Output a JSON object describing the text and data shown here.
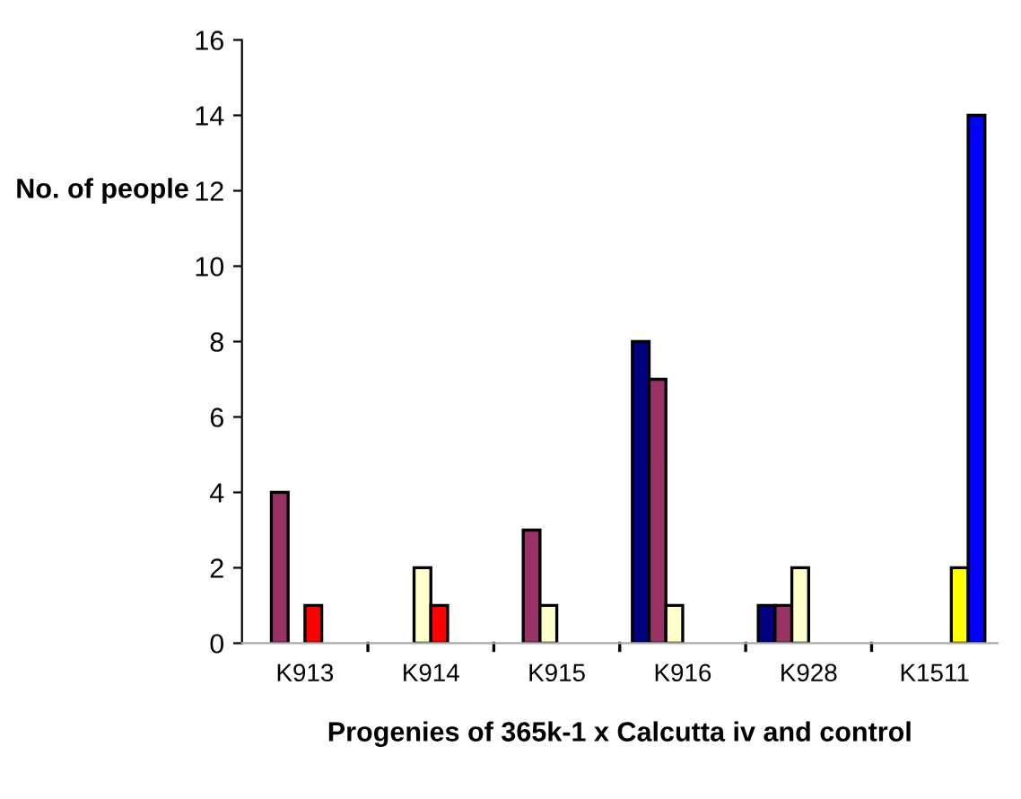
{
  "chart_data": {
    "type": "bar",
    "xlabel": "Progenies of 365k-1 x Calcutta iv and control",
    "ylabel": "No. of people",
    "categories": [
      "K913",
      "K914",
      "K915",
      "K916",
      "K928",
      "K1511"
    ],
    "series": [
      {
        "color": "#000080",
        "values": [
          null,
          null,
          null,
          8,
          1,
          null
        ]
      },
      {
        "color": "#993366",
        "values": [
          4,
          null,
          3,
          7,
          1,
          null
        ]
      },
      {
        "color": "#ffffcc",
        "values": [
          null,
          2,
          1,
          1,
          2,
          null
        ]
      },
      {
        "color": "#ff0000",
        "values": [
          1,
          1,
          null,
          null,
          null,
          null
        ]
      },
      {
        "color": "#ffff00",
        "values": [
          null,
          null,
          null,
          null,
          null,
          2
        ]
      },
      {
        "color": "#0000ff",
        "values": [
          null,
          null,
          null,
          null,
          null,
          14
        ]
      }
    ],
    "ylim": [
      0,
      16
    ],
    "yticks": [
      0,
      2,
      4,
      6,
      8,
      10,
      12,
      14,
      16
    ],
    "grid": false,
    "legend": false
  }
}
